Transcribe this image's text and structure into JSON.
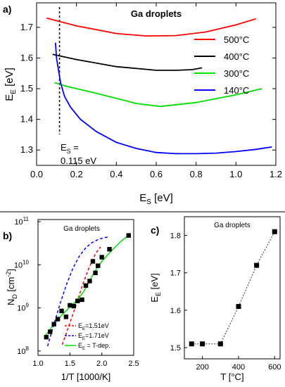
{
  "panels": {
    "a": {
      "label": "a)"
    },
    "b": {
      "label": "b)"
    },
    "c": {
      "label": "c)"
    }
  },
  "chart_data": [
    {
      "id": "a",
      "type": "line",
      "title": "Ga droplets",
      "xlabel_main": "E",
      "xlabel_sub": "S",
      "xlabel_unit": " [eV]",
      "ylabel_main": "E",
      "ylabel_sub": "E",
      "ylabel_unit": " [eV]",
      "xlim": [
        0.0,
        1.2
      ],
      "ylim": [
        1.25,
        1.78
      ],
      "xticks": [
        0.0,
        0.2,
        0.4,
        0.6,
        0.8,
        1.0,
        1.2
      ],
      "xtick_labels": [
        "0.0",
        "0.2",
        "0.4",
        "0.6",
        "0.8",
        "1.0",
        "1.2"
      ],
      "yticks": [
        1.3,
        1.4,
        1.5,
        1.6,
        1.7
      ],
      "ytick_labels": [
        "1.3",
        "1.4",
        "1.5",
        "1.6",
        "1.7"
      ],
      "legend_position": "right",
      "series": [
        {
          "name": "500°C",
          "color": "#ff0000",
          "x": [
            0.05,
            0.2,
            0.4,
            0.55,
            0.7,
            0.85,
            1.0,
            1.1
          ],
          "y": [
            1.73,
            1.705,
            1.68,
            1.672,
            1.673,
            1.685,
            1.708,
            1.728
          ]
        },
        {
          "name": "400°C",
          "color": "#000000",
          "x": [
            0.08,
            0.2,
            0.4,
            0.6,
            0.7,
            0.78,
            0.83
          ],
          "y": [
            1.612,
            1.595,
            1.572,
            1.56,
            1.56,
            1.562,
            1.568
          ]
        },
        {
          "name": "300°C",
          "color": "#00dd00",
          "x": [
            0.09,
            0.15,
            0.3,
            0.5,
            0.62,
            0.8,
            1.0,
            1.13
          ],
          "y": [
            1.52,
            1.508,
            1.485,
            1.452,
            1.442,
            1.455,
            1.48,
            1.5
          ]
        },
        {
          "name": "140°C",
          "color": "#0000ff",
          "x": [
            0.095,
            0.1,
            0.11,
            0.12,
            0.14,
            0.17,
            0.22,
            0.3,
            0.4,
            0.5,
            0.6,
            0.7,
            0.8,
            0.9,
            1.0,
            1.1,
            1.18
          ],
          "y": [
            1.65,
            1.6,
            1.56,
            1.52,
            1.475,
            1.44,
            1.4,
            1.36,
            1.325,
            1.305,
            1.292,
            1.288,
            1.288,
            1.29,
            1.295,
            1.302,
            1.31
          ]
        }
      ],
      "annotation": {
        "x": 0.115,
        "line1_main": "E",
        "line1_sub": "S",
        "line1_rest": " =",
        "line2": "0.115 eV"
      }
    },
    {
      "id": "b",
      "type": "scatter",
      "title": "Ga droplets",
      "xlabel": "1/T [1000/K]",
      "ylabel_main": "N",
      "ylabel_sub": "D",
      "ylabel_unit": " [cm",
      "ylabel_exp": "-2",
      "ylabel_close": "]",
      "xlim": [
        1.0,
        2.5
      ],
      "ylim_log10": [
        7.9,
        11.05
      ],
      "log_y": true,
      "xticks": [
        1.0,
        1.5,
        2.0,
        2.5
      ],
      "xtick_labels": [
        "1.0",
        "1.5",
        "2.0",
        "2.5"
      ],
      "yticks_exp": [
        8,
        9,
        10,
        11
      ],
      "ytick_base": "10",
      "ytick_exps": [
        "8",
        "9",
        "10",
        "11"
      ],
      "points": {
        "x": [
          1.13,
          1.19,
          1.25,
          1.31,
          1.37,
          1.44,
          1.5,
          1.56,
          1.62,
          1.69,
          1.75,
          1.81,
          1.86,
          1.9,
          1.94,
          2.0,
          2.12,
          2.42
        ],
        "y": [
          210000000.0,
          280000000.0,
          420000000.0,
          550000000.0,
          850000000.0,
          620000000.0,
          1150000000.0,
          1100000000.0,
          1450000000.0,
          1550000000.0,
          3300000000.0,
          4200000000.0,
          12000000000.0,
          6500000000.0,
          9500000000.0,
          15000000000.0,
          23000000000.0,
          48000000000.0
        ],
        "color": "#000000"
      },
      "series": [
        {
          "name": "1.51eV",
          "name_main": "E",
          "name_sub": "E",
          "name_rest": "=1.51eV",
          "color": "#ff0000",
          "style": "dashed",
          "x": [
            1.38,
            1.5,
            1.6,
            1.7,
            1.8,
            1.9,
            1.98
          ],
          "y": [
            140000000.0,
            450000000.0,
            1200000000.0,
            3500000000.0,
            8500000000.0,
            18000000000.0,
            26000000000.0
          ]
        },
        {
          "name": "1.71eV",
          "name_main": "E",
          "name_sub": "E",
          "name_rest": "=1.71eV",
          "color": "#0000ff",
          "style": "dashed",
          "x": [
            1.15,
            1.25,
            1.35,
            1.45,
            1.55,
            1.65,
            1.75,
            1.85,
            1.95,
            2.05,
            2.12
          ],
          "y": [
            130000000.0,
            420000000.0,
            1300000000.0,
            3600000000.0,
            8500000000.0,
            16000000000.0,
            25000000000.0,
            33000000000.0,
            39000000000.0,
            43000000000.0,
            44000000000.0
          ]
        },
        {
          "name": "T-dep.",
          "name_main": "E",
          "name_sub": "E",
          "name_rest": " = T-dep.",
          "color": "#00dd00",
          "style": "solid",
          "x": [
            1.12,
            1.2,
            1.3,
            1.4,
            1.5,
            1.6,
            1.7,
            1.78,
            1.85,
            1.92,
            2.0,
            2.1,
            2.2,
            2.3,
            2.42
          ],
          "y": [
            230000000.0,
            330000000.0,
            520000000.0,
            750000000.0,
            1050000000.0,
            1450000000.0,
            2200000000.0,
            3500000000.0,
            5500000000.0,
            8200000000.0,
            12000000000.0,
            17500000000.0,
            25000000000.0,
            35000000000.0,
            48000000000.0
          ]
        }
      ]
    },
    {
      "id": "c",
      "type": "scatter",
      "title": "Ga droplets",
      "xlabel": "T [°C]",
      "ylabel_main": "E",
      "ylabel_sub": "E",
      "ylabel_unit": " [eV]",
      "xlim": [
        100,
        630
      ],
      "ylim": [
        1.47,
        1.85
      ],
      "xticks": [
        200,
        400,
        600
      ],
      "xtick_labels": [
        "200",
        "400",
        "600"
      ],
      "yticks": [
        1.5,
        1.6,
        1.7,
        1.8
      ],
      "ytick_labels": [
        "1.5",
        "1.6",
        "1.7",
        "1.8"
      ],
      "connector": "dashed",
      "x": [
        140,
        200,
        300,
        400,
        500,
        600
      ],
      "y": [
        1.51,
        1.51,
        1.51,
        1.61,
        1.72,
        1.81
      ]
    }
  ]
}
